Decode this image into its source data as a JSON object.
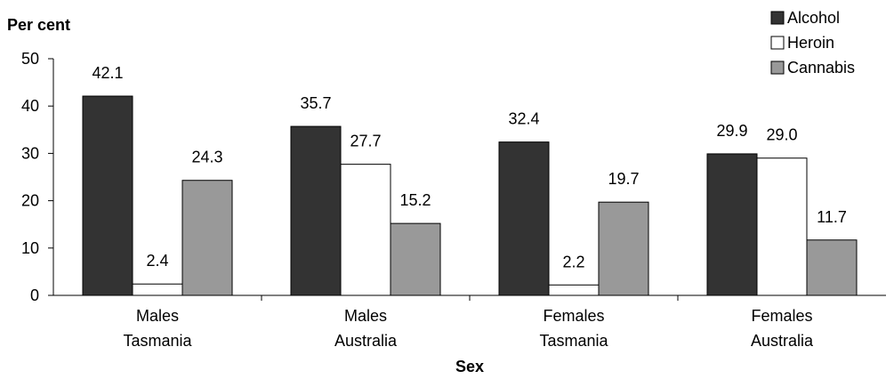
{
  "chart_data": {
    "type": "bar",
    "title": "",
    "ylabel": "Per cent",
    "xlabel": "Sex",
    "ylim": [
      0,
      50
    ],
    "yticks": [
      0,
      10,
      20,
      30,
      40,
      50
    ],
    "legend_position": "top-right",
    "grid": false,
    "categories": [
      [
        "Males",
        "Tasmania"
      ],
      [
        "Males",
        "Australia"
      ],
      [
        "Females",
        "Tasmania"
      ],
      [
        "Females",
        "Australia"
      ]
    ],
    "series": [
      {
        "name": "Alcohol",
        "color": "#333333",
        "values": [
          42.1,
          35.7,
          32.4,
          29.9
        ],
        "labels": [
          "42.1",
          "35.7",
          "32.4",
          "29.9"
        ]
      },
      {
        "name": "Heroin",
        "color": "#ffffff",
        "values": [
          2.4,
          27.7,
          2.2,
          29.0
        ],
        "labels": [
          "2.4",
          "27.7",
          "2.2",
          "29.0"
        ]
      },
      {
        "name": "Cannabis",
        "color": "#999999",
        "values": [
          24.3,
          15.2,
          19.7,
          11.7
        ],
        "labels": [
          "24.3",
          "15.2",
          "19.7",
          "11.7"
        ]
      }
    ]
  }
}
